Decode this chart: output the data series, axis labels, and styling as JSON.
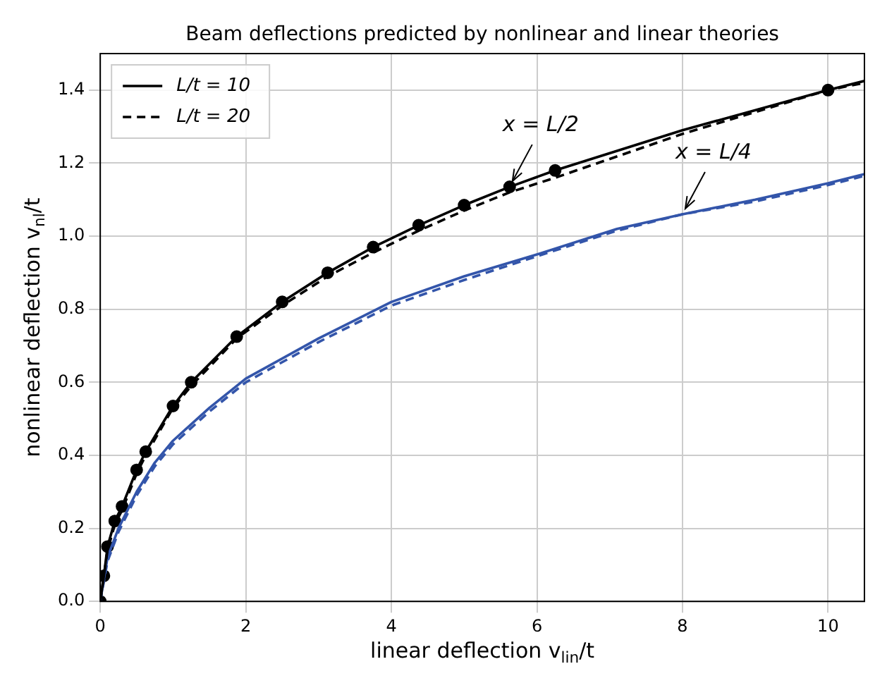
{
  "chart_data": {
    "type": "line",
    "title": "Beam deflections predicted by nonlinear and linear theories",
    "xlabel": "linear deflection v$_{lin}$/t",
    "ylabel": "nonlinear deflection v$_{nl}$/t",
    "xlim": [
      0,
      10.5
    ],
    "xticks": [
      0,
      2,
      4,
      6,
      8,
      10
    ],
    "ylim": [
      0,
      1.5
    ],
    "yticks": [
      {
        "value": 0,
        "label": "0.0"
      },
      {
        "value": 0.2,
        "label": "0.2"
      },
      {
        "value": 0.4,
        "label": "0.4"
      },
      {
        "value": 0.6,
        "label": "0.6"
      },
      {
        "value": 0.8,
        "label": "0.8"
      },
      {
        "value": 1,
        "label": "1.0"
      },
      {
        "value": 1.2,
        "label": "1.2"
      },
      {
        "value": 1.4,
        "label": "1.4"
      }
    ],
    "grid": true,
    "legend": "top left",
    "marker": "none",
    "annotations": [
      {
        "text": "x = L/2",
        "x": 5.625,
        "y": 1.135
      },
      {
        "text": "x = L/4",
        "x": 8,
        "y": 1.06
      }
    ],
    "series": [
      {
        "name": "L/t = 10",
        "color": "#000000",
        "line_style": "solid",
        "x": [
          0,
          0.05,
          0.1,
          0.2,
          0.3,
          0.5,
          0.625,
          1,
          1.25,
          1.875,
          2.5,
          3.125,
          3.75,
          4.375,
          5,
          5.625,
          6.25,
          8,
          10,
          10.5
        ],
        "values": [
          0,
          0.07,
          0.15,
          0.22,
          0.26,
          0.36,
          0.41,
          0.535,
          0.6,
          0.725,
          0.82,
          0.9,
          0.97,
          1.03,
          1.085,
          1.135,
          1.18,
          1.29,
          1.4,
          1.425
        ]
      },
      {
        "name": "L/t = 20",
        "color": "#000000",
        "line_style": "dashed",
        "x": [
          0,
          0.05,
          0.1,
          0.2,
          0.3,
          0.5,
          0.625,
          1,
          1.25,
          1.875,
          2.5,
          3.125,
          3.75,
          4.375,
          5,
          5.625,
          6.25,
          8,
          10,
          10.5
        ],
        "values": [
          0,
          0.07,
          0.14,
          0.21,
          0.25,
          0.35,
          0.4,
          0.53,
          0.59,
          0.72,
          0.81,
          0.89,
          0.955,
          1.015,
          1.07,
          1.12,
          1.16,
          1.28,
          1.4,
          1.42
        ]
      },
      {
        "color": "#3355aa",
        "line_style": "solid",
        "x": [
          0,
          0.1,
          0.25,
          0.5,
          0.75,
          1,
          1.5,
          2,
          3,
          4,
          5,
          6,
          7.1,
          8,
          9,
          10,
          10.5
        ],
        "values": [
          0,
          0.12,
          0.2,
          0.3,
          0.38,
          0.44,
          0.53,
          0.61,
          0.72,
          0.82,
          0.89,
          0.95,
          1.02,
          1.06,
          1.1,
          1.145,
          1.17
        ]
      },
      {
        "color": "#3355aa",
        "line_style": "dashed",
        "x": [
          0,
          0.1,
          0.25,
          0.5,
          0.75,
          1,
          1.5,
          2,
          3,
          4,
          5,
          6,
          7.1,
          8,
          9,
          10,
          10.5
        ],
        "values": [
          0,
          0.11,
          0.19,
          0.29,
          0.37,
          0.43,
          0.52,
          0.6,
          0.71,
          0.81,
          0.88,
          0.945,
          1.015,
          1.06,
          1.095,
          1.14,
          1.165
        ]
      },
      {
        "type": "scatter",
        "marker": "circle",
        "color": "#000000",
        "x": [
          0,
          0.05,
          0.1,
          0.2,
          0.3,
          0.5,
          0.625,
          1,
          1.25,
          1.875,
          2.5,
          3.125,
          3.75,
          4.375,
          5,
          5.625,
          6.25,
          10
        ],
        "values": [
          0,
          0.07,
          0.15,
          0.22,
          0.26,
          0.36,
          0.41,
          0.535,
          0.6,
          0.725,
          0.82,
          0.9,
          0.97,
          1.03,
          1.085,
          1.135,
          1.18,
          1.4
        ]
      }
    ]
  }
}
